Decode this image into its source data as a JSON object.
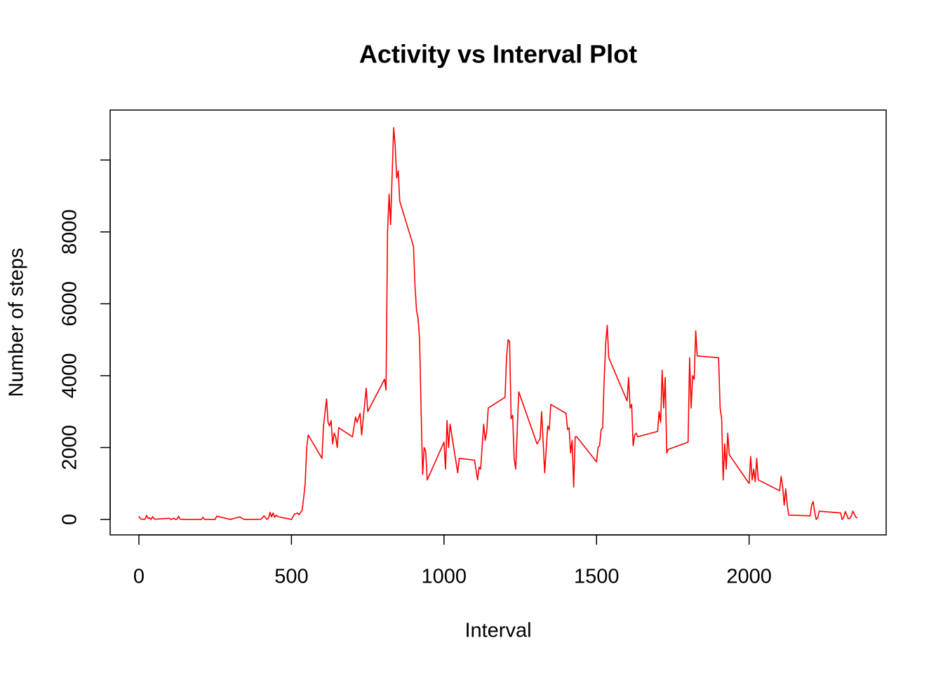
{
  "chart_data": {
    "type": "line",
    "title": "Activity vs Interval Plot",
    "x_label": "Interval",
    "y_label": "Number of steps",
    "color": "#ff0000",
    "xlim": [
      -94.2,
      2449.2
    ],
    "ylim": [
      -430,
      11390
    ],
    "xticks": [
      0,
      500,
      1000,
      1500,
      2000
    ],
    "yticks": [
      0,
      2000,
      4000,
      6000,
      8000,
      {
        "value": 10000,
        "label": null
      }
    ],
    "x": [
      0,
      5,
      10,
      15,
      20,
      25,
      30,
      35,
      40,
      45,
      50,
      55,
      100,
      105,
      110,
      115,
      120,
      125,
      130,
      135,
      150,
      200,
      205,
      210,
      215,
      250,
      255,
      300,
      330,
      345,
      400,
      410,
      420,
      425,
      430,
      435,
      440,
      445,
      450,
      455,
      500,
      510,
      520,
      525,
      530,
      535,
      540,
      545,
      550,
      555,
      600,
      605,
      615,
      620,
      625,
      630,
      635,
      640,
      645,
      650,
      655,
      700,
      710,
      715,
      725,
      730,
      745,
      750,
      805,
      810,
      815,
      820,
      825,
      830,
      835,
      840,
      845,
      850,
      855,
      900,
      905,
      910,
      915,
      920,
      925,
      930,
      935,
      940,
      945,
      1000,
      1005,
      1010,
      1015,
      1020,
      1030,
      1045,
      1050,
      1100,
      1110,
      1115,
      1120,
      1130,
      1135,
      1140,
      1145,
      1200,
      1205,
      1210,
      1215,
      1220,
      1225,
      1230,
      1235,
      1245,
      1305,
      1315,
      1320,
      1330,
      1340,
      1345,
      1350,
      1400,
      1405,
      1410,
      1415,
      1420,
      1425,
      1430,
      1435,
      1500,
      1505,
      1510,
      1515,
      1520,
      1525,
      1530,
      1535,
      1540,
      1600,
      1605,
      1610,
      1615,
      1620,
      1625,
      1630,
      1635,
      1700,
      1705,
      1710,
      1715,
      1720,
      1725,
      1730,
      1735,
      1800,
      1805,
      1810,
      1815,
      1820,
      1825,
      1830,
      1900,
      1905,
      1910,
      1915,
      1920,
      1925,
      1930,
      1935,
      2000,
      2005,
      2010,
      2015,
      2020,
      2025,
      2030,
      2100,
      2105,
      2110,
      2115,
      2120,
      2125,
      2130,
      2200,
      2205,
      2210,
      2215,
      2220,
      2225,
      2230,
      2300,
      2305,
      2310,
      2315,
      2320,
      2325,
      2330,
      2335,
      2340,
      2345,
      2350,
      2355
    ],
    "values": [
      91,
      18,
      7,
      8,
      4,
      111,
      28,
      46,
      0,
      78,
      16,
      7,
      31,
      0,
      17,
      34,
      0,
      7,
      87,
      9,
      0,
      0,
      0,
      61,
      0,
      0,
      90,
      0,
      70,
      0,
      5,
      100,
      0,
      40,
      200,
      70,
      180,
      60,
      120,
      80,
      0,
      150,
      180,
      130,
      200,
      250,
      600,
      1000,
      2000,
      2350,
      1700,
      2600,
      3350,
      2700,
      2600,
      2750,
      2100,
      2400,
      2300,
      2000,
      2550,
      2300,
      2850,
      2700,
      2950,
      2350,
      3650,
      3000,
      3900,
      3600,
      8000,
      9050,
      8200,
      9600,
      10900,
      10400,
      9500,
      9700,
      8850,
      7600,
      6500,
      5800,
      5600,
      5000,
      3000,
      1250,
      2000,
      1900,
      1100,
      2150,
      1400,
      2750,
      2000,
      2650,
      2100,
      1300,
      1700,
      1650,
      1100,
      1450,
      1400,
      2650,
      2200,
      2450,
      3100,
      3400,
      4500,
      5000,
      4950,
      2800,
      2900,
      1700,
      1400,
      3550,
      2100,
      2250,
      3000,
      1300,
      2600,
      2500,
      3200,
      2950,
      2500,
      2550,
      1850,
      2200,
      900,
      2300,
      2300,
      1600,
      2000,
      2050,
      2500,
      2550,
      3900,
      4900,
      5400,
      4500,
      3300,
      3950,
      3100,
      3200,
      2050,
      2350,
      2400,
      2300,
      2450,
      3000,
      2700,
      4150,
      3100,
      3950,
      1850,
      1950,
      2150,
      4500,
      3100,
      4000,
      3900,
      5250,
      4550,
      4500,
      3100,
      2800,
      1100,
      2100,
      1400,
      2400,
      1800,
      1000,
      1750,
      1100,
      1400,
      1050,
      1700,
      1100,
      800,
      1200,
      900,
      400,
      850,
      400,
      120,
      100,
      400,
      500,
      200,
      0,
      50,
      230,
      180,
      0,
      50,
      220,
      130,
      20,
      30,
      100,
      230,
      150,
      60,
      40
    ]
  }
}
